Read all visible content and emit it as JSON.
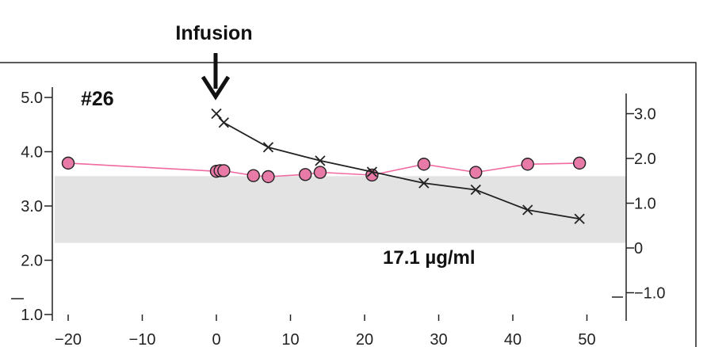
{
  "chart_data": {
    "type": "line",
    "title": "",
    "xlabel": "",
    "ylabel": "",
    "x_ticks": [
      -20,
      -10,
      0,
      10,
      20,
      30,
      40,
      50
    ],
    "xlim": [
      -23,
      55
    ],
    "y_left": {
      "lim": [
        1.0,
        5.0
      ],
      "ticks": [
        1.0,
        2.0,
        3.0,
        4.0,
        5.0
      ],
      "tick_labels": [
        "1.0",
        "2.0",
        "3.0",
        "4.0",
        "5.0"
      ]
    },
    "y_right": {
      "lim": [
        -1.5,
        3.5
      ],
      "ticks": [
        -1.0,
        0,
        1.0,
        2.0,
        3.0
      ],
      "tick_labels": [
        "−1.0",
        "0",
        "1.0",
        "2.0",
        "3.0"
      ]
    },
    "shaded_band_left_axis": [
      2.32,
      3.55
    ],
    "series": [
      {
        "marker": "circle",
        "color": "#f06aa0",
        "fill": "#e87aa8",
        "axis": "left",
        "x": [
          -20,
          0,
          0.5,
          1,
          5,
          7,
          12,
          14,
          21,
          28,
          35,
          42,
          49
        ],
        "y": [
          3.79,
          3.64,
          3.65,
          3.65,
          3.56,
          3.54,
          3.58,
          3.62,
          3.57,
          3.77,
          3.62,
          3.77,
          3.79
        ]
      },
      {
        "marker": "x",
        "color": "#222222",
        "axis": "right",
        "x": [
          0,
          1,
          7,
          14,
          21,
          28,
          35,
          42,
          49
        ],
        "y": [
          3.0,
          2.8,
          2.25,
          1.95,
          1.7,
          1.45,
          1.3,
          0.85,
          0.65
        ]
      }
    ],
    "annotations": {
      "infusion": {
        "label": "Infusion",
        "x": 0
      },
      "subject": "#26",
      "concentration": "17.1 µg/ml"
    }
  }
}
